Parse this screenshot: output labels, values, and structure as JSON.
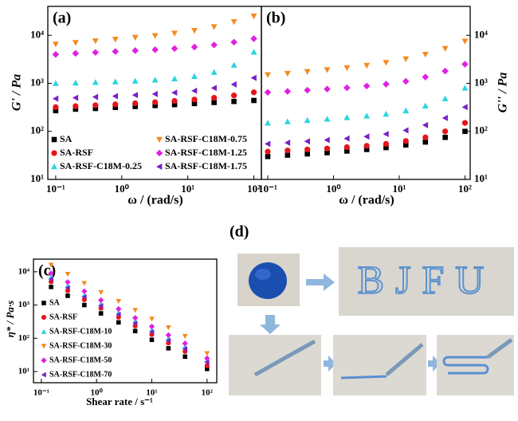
{
  "chart_data": [
    {
      "type": "scatter",
      "title": "(a)",
      "xlabel": "ω / (rad/s)",
      "ylabel": "G' / Pa",
      "log_x": true,
      "log_y": true,
      "yaxis_side": "left",
      "xlim": [
        0.076,
        130
      ],
      "ylim": [
        10,
        40000
      ],
      "xticks": [
        {
          "value": 0.1,
          "label": "10⁻¹"
        },
        {
          "value": 1,
          "label": "10⁰"
        },
        {
          "value": 10,
          "label": "10¹"
        },
        {
          "value": 100,
          "label": "10²"
        }
      ],
      "yticks": [
        {
          "value": 10,
          "label": "10¹"
        },
        {
          "value": 100,
          "label": "10²"
        },
        {
          "value": 1000,
          "label": "10³"
        },
        {
          "value": 10000,
          "label": "10⁴"
        }
      ],
      "x": [
        0.1,
        0.2,
        0.4,
        0.8,
        1.6,
        3.2,
        6.3,
        12.6,
        25,
        50,
        100
      ],
      "series": [
        {
          "name": "SA",
          "color": "#000000",
          "marker": "square",
          "values": [
            270,
            290,
            300,
            315,
            330,
            345,
            360,
            380,
            400,
            420,
            440
          ]
        },
        {
          "name": "SA-RSF",
          "color": "#e8141b",
          "marker": "circle",
          "values": [
            320,
            335,
            350,
            365,
            385,
            405,
            430,
            460,
            500,
            560,
            650
          ]
        },
        {
          "name": "SA-RSF-C18M-0.25",
          "color": "#2ad4e0",
          "marker": "triangle-up",
          "values": [
            1000,
            1020,
            1050,
            1080,
            1120,
            1180,
            1250,
            1400,
            1700,
            2400,
            4500
          ]
        },
        {
          "name": "SA-RSF-C18M-0.75",
          "color": "#f58a1f",
          "marker": "triangle-down",
          "values": [
            6500,
            7000,
            7600,
            8200,
            9000,
            9800,
            11000,
            12500,
            15000,
            19000,
            25000
          ]
        },
        {
          "name": "SA-RSF-C18M-1.25",
          "color": "#e020e0",
          "marker": "diamond",
          "values": [
            4000,
            4200,
            4400,
            4600,
            4800,
            5000,
            5300,
            5700,
            6300,
            7200,
            8500
          ]
        },
        {
          "name": "SA-RSF-C18M-1.75",
          "color": "#7a1fc8",
          "marker": "triangle-left",
          "values": [
            480,
            500,
            520,
            540,
            570,
            600,
            640,
            700,
            800,
            950,
            1300
          ]
        }
      ]
    },
    {
      "type": "scatter",
      "title": "(b)",
      "xlabel": "ω / (rad/s)",
      "ylabel": "G'' / Pa",
      "log_x": true,
      "log_y": true,
      "yaxis_side": "right",
      "xlim": [
        0.08,
        120
      ],
      "ylim": [
        10,
        40000
      ],
      "xticks": [
        {
          "value": 0.1,
          "label": "10⁻¹"
        },
        {
          "value": 1,
          "label": "10⁰"
        },
        {
          "value": 10,
          "label": "10¹"
        },
        {
          "value": 100,
          "label": "10²"
        }
      ],
      "yticks": [
        {
          "value": 10,
          "label": "10¹"
        },
        {
          "value": 100,
          "label": "10²"
        },
        {
          "value": 1000,
          "label": "10³"
        },
        {
          "value": 10000,
          "label": "10⁴"
        }
      ],
      "x": [
        0.1,
        0.2,
        0.4,
        0.8,
        1.6,
        3.2,
        6.3,
        12.6,
        25,
        50,
        100
      ],
      "series": [
        {
          "color": "#000000",
          "marker": "square",
          "values": [
            30,
            32,
            34,
            36,
            39,
            42,
            46,
            52,
            60,
            75,
            100
          ]
        },
        {
          "color": "#e8141b",
          "marker": "circle",
          "values": [
            38,
            40,
            42,
            44,
            47,
            50,
            55,
            63,
            75,
            100,
            150
          ]
        },
        {
          "color": "#2ad4e0",
          "marker": "triangle-up",
          "values": [
            150,
            160,
            170,
            180,
            195,
            210,
            230,
            270,
            340,
            480,
            800
          ]
        },
        {
          "color": "#f58a1f",
          "marker": "triangle-down",
          "values": [
            1500,
            1600,
            1750,
            1900,
            2100,
            2350,
            2700,
            3200,
            4000,
            5300,
            7500
          ]
        },
        {
          "color": "#e020e0",
          "marker": "diamond",
          "values": [
            650,
            680,
            720,
            760,
            810,
            880,
            960,
            1100,
            1350,
            1800,
            2500
          ]
        },
        {
          "color": "#7a1fc8",
          "marker": "triangle-left",
          "values": [
            55,
            58,
            62,
            66,
            71,
            78,
            88,
            105,
            135,
            190,
            320
          ]
        }
      ]
    },
    {
      "type": "scatter",
      "title": "(c)",
      "xlabel": "Shear rate / s⁻¹",
      "ylabel": "η* / Pa·s",
      "log_x": true,
      "log_y": true,
      "yaxis_side": "left",
      "xlim": [
        0.072,
        150
      ],
      "ylim": [
        4.6,
        24000
      ],
      "xticks": [
        {
          "value": 0.1,
          "label": "10⁻¹"
        },
        {
          "value": 1,
          "label": "10⁰"
        },
        {
          "value": 10,
          "label": "10¹"
        },
        {
          "value": 100,
          "label": "10²"
        }
      ],
      "yticks": [
        {
          "value": 10,
          "label": "10¹"
        },
        {
          "value": 100,
          "label": "10²"
        },
        {
          "value": 1000,
          "label": "10³"
        },
        {
          "value": 10000,
          "label": "10⁴"
        }
      ],
      "x": [
        0.15,
        0.3,
        0.6,
        1.2,
        2.5,
        5,
        10,
        20,
        40,
        100
      ],
      "series": [
        {
          "name": "SA",
          "color": "#000000",
          "marker": "square",
          "values": [
            3500,
            1900,
            1000,
            560,
            300,
            165,
            90,
            50,
            28,
            12
          ]
        },
        {
          "name": "SA-RSF",
          "color": "#e8141b",
          "marker": "circle",
          "values": [
            5000,
            2700,
            1450,
            800,
            430,
            235,
            130,
            72,
            40,
            15
          ]
        },
        {
          "name": "SA-RSF-C18M-10",
          "color": "#2ad4e0",
          "marker": "triangle-up",
          "values": [
            7000,
            3800,
            2000,
            1100,
            600,
            330,
            180,
            100,
            56,
            22
          ]
        },
        {
          "name": "SA-RSF-C18M-30",
          "color": "#f58a1f",
          "marker": "triangle-down",
          "values": [
            16000,
            8500,
            4500,
            2400,
            1300,
            700,
            380,
            210,
            115,
            35
          ]
        },
        {
          "name": "SA-RSF-C18M-50",
          "color": "#e020e0",
          "marker": "diamond",
          "values": [
            9000,
            4900,
            2600,
            1400,
            760,
            410,
            225,
            125,
            70,
            25
          ]
        },
        {
          "name": "SA-RSF-C18M-70",
          "color": "#7a1fc8",
          "marker": "triangle-left",
          "values": [
            6000,
            3300,
            1750,
            950,
            520,
            285,
            155,
            86,
            48,
            19
          ]
        }
      ]
    }
  ],
  "panel_d": {
    "label": "(d)",
    "photo_text": "BJFU"
  }
}
